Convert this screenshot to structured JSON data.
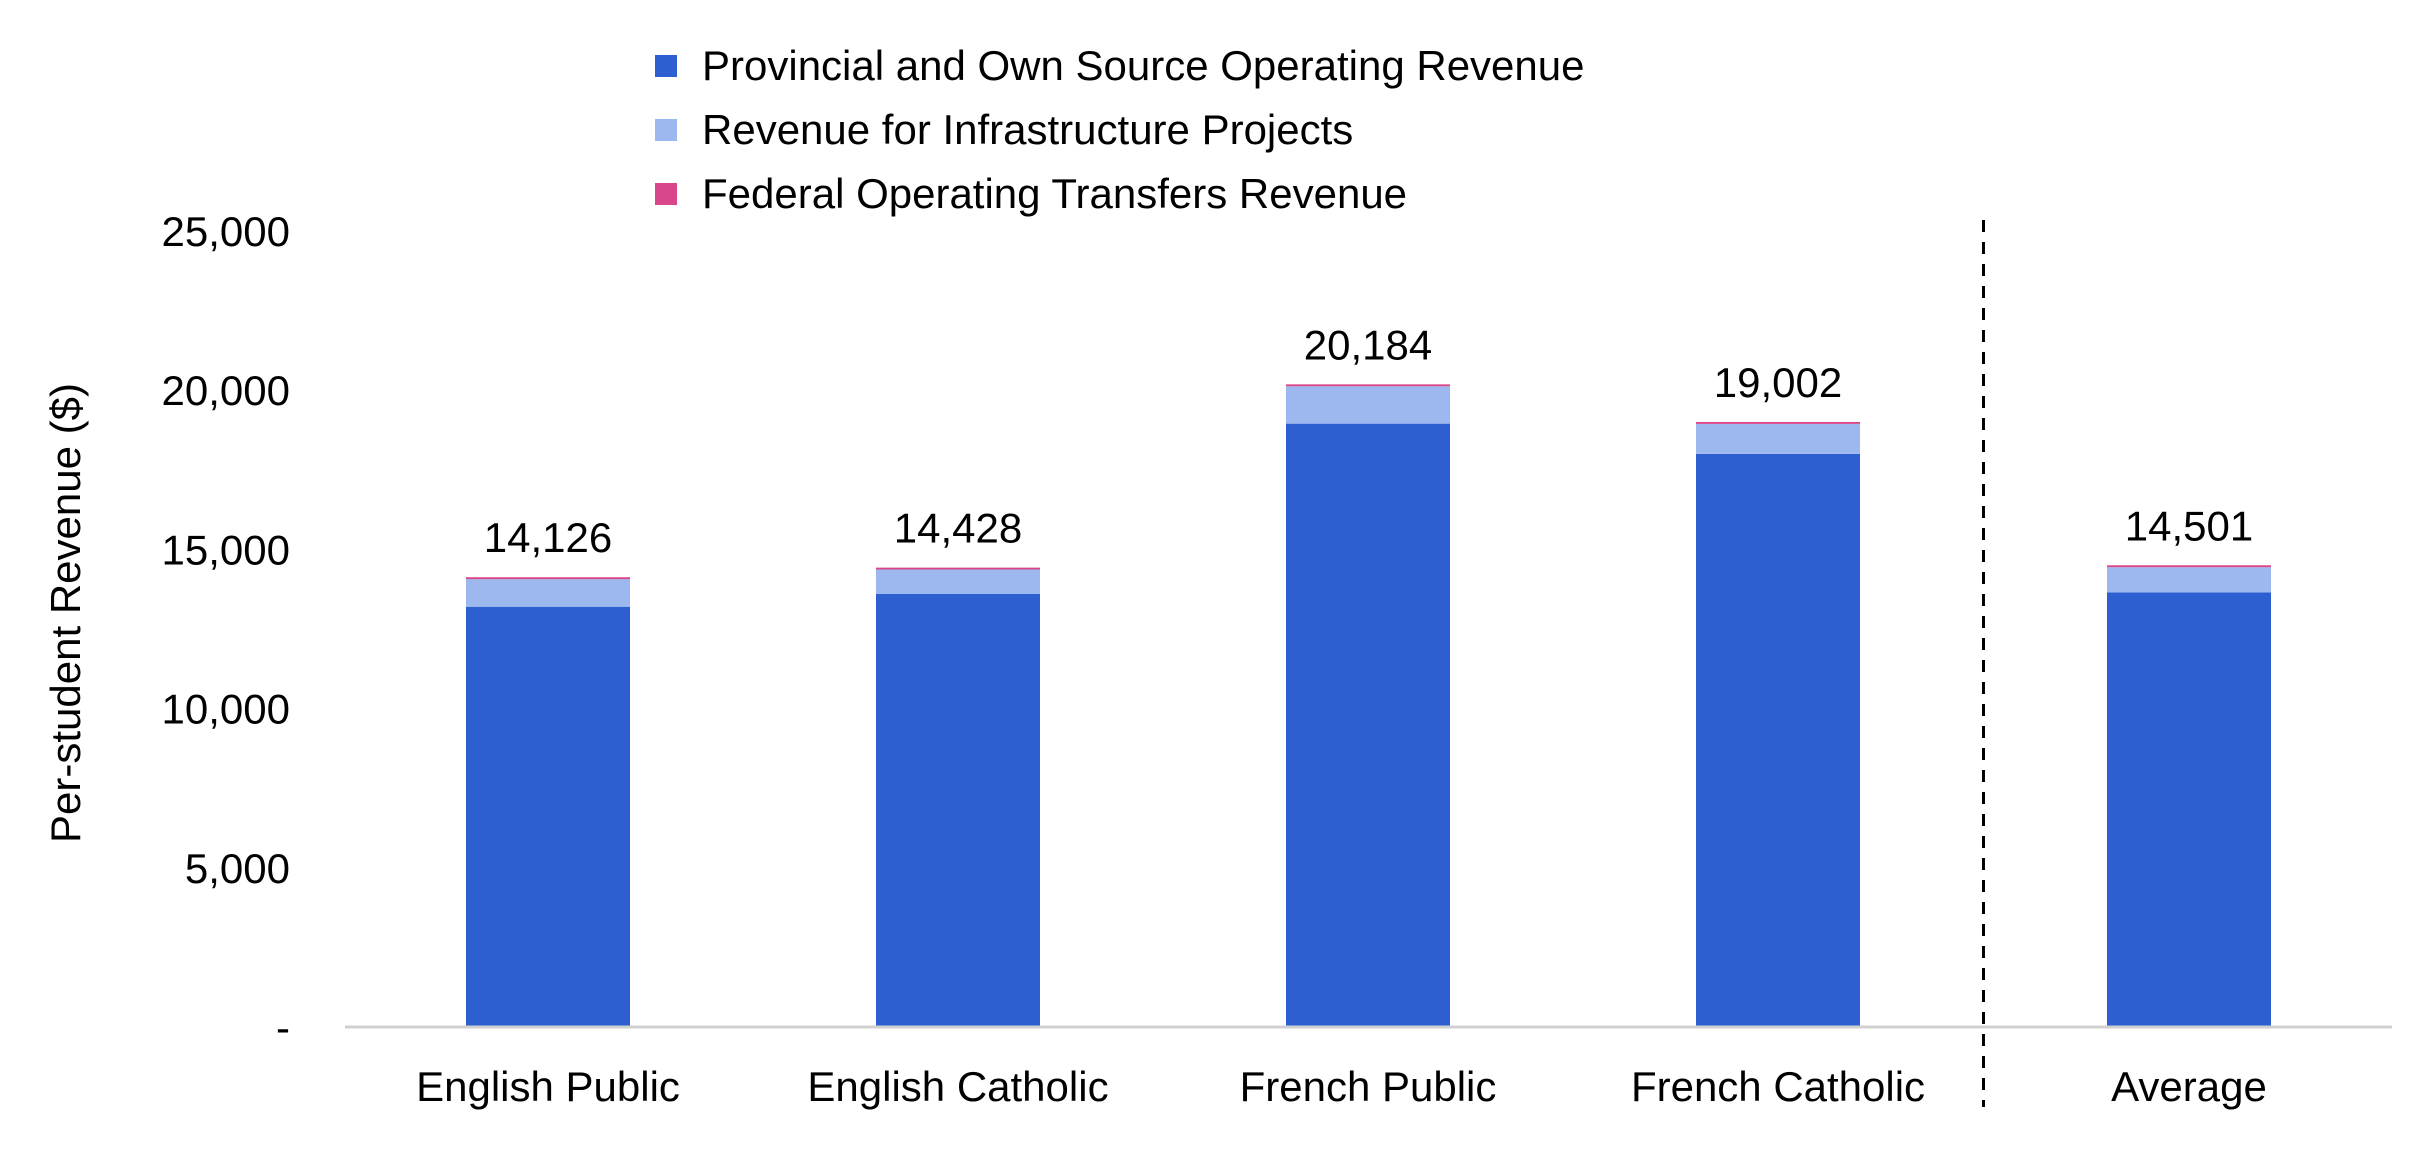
{
  "chart_data": {
    "type": "bar",
    "stacked": true,
    "title": "",
    "xlabel": "",
    "ylabel": "Per-student Revenue ($)",
    "ylim": [
      0,
      25000
    ],
    "yticks": [
      0,
      5000,
      10000,
      15000,
      20000,
      25000
    ],
    "ytick_labels": [
      "-",
      "5,000",
      "10,000",
      "15,000",
      "20,000",
      "25,000"
    ],
    "categories": [
      "English Public",
      "English Catholic",
      "French Public",
      "French Catholic",
      "Average"
    ],
    "series": [
      {
        "name": "Provincial and Own Source Operating Revenue",
        "color": "#2e5fd1",
        "values": [
          13200,
          13600,
          18950,
          18000,
          13650
        ]
      },
      {
        "name": "Revenue for Infrastructure Projects",
        "color": "#9db8ee",
        "values": [
          866,
          768,
          1174,
          942,
          791
        ]
      },
      {
        "name": "Federal Operating Transfers Revenue",
        "color": "#d9478a",
        "values": [
          60,
          60,
          60,
          60,
          60
        ]
      }
    ],
    "totals": [
      14126,
      14428,
      20184,
      19002,
      14501
    ],
    "total_labels": [
      "14,126",
      "14,428",
      "20,184",
      "19,002",
      "14,501"
    ],
    "separator": "dashed vertical line between French Catholic and Average",
    "grid": false,
    "legend_position": "top"
  }
}
